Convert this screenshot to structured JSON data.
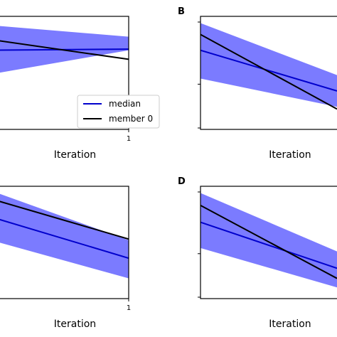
{
  "chart_data": [
    {
      "panel": "",
      "type": "line",
      "xlabel": "Iteration",
      "x_ticks": [
        "1"
      ],
      "xlim": [
        0,
        1
      ],
      "ylim": [
        0,
        1
      ],
      "band": {
        "x": [
          0,
          1
        ],
        "upper": [
          0.93,
          0.82
        ],
        "lower": [
          0.47,
          0.7
        ]
      },
      "series": [
        {
          "name": "median",
          "color": "#0000cc",
          "x": [
            0,
            1
          ],
          "y": [
            0.7,
            0.71
          ]
        },
        {
          "name": "member 0",
          "color": "#000000",
          "x": [
            0,
            1
          ],
          "y": [
            0.81,
            0.62
          ]
        }
      ],
      "legend": {
        "entries": [
          {
            "label": "median",
            "color": "#0000cc"
          },
          {
            "label": "member 0",
            "color": "#000000"
          }
        ],
        "placement": "lower-right"
      }
    },
    {
      "panel": "B",
      "type": "line",
      "xlabel": "Iteration",
      "x_ticks": [],
      "xlim": [
        0,
        1
      ],
      "ylim": [
        0,
        1
      ],
      "band": {
        "x": [
          0,
          1
        ],
        "upper": [
          0.94,
          0.48
        ],
        "lower": [
          0.45,
          0.2
        ]
      },
      "series": [
        {
          "name": "median",
          "color": "#0000cc",
          "x": [
            0,
            1
          ],
          "y": [
            0.7,
            0.34
          ]
        },
        {
          "name": "member 0",
          "color": "#000000",
          "x": [
            0,
            1
          ],
          "y": [
            0.84,
            0.18
          ]
        }
      ]
    },
    {
      "panel": "",
      "type": "line",
      "xlabel": "Iteration",
      "x_ticks": [
        "1"
      ],
      "xlim": [
        0,
        1
      ],
      "ylim": [
        0,
        1
      ],
      "band": {
        "x": [
          0,
          1
        ],
        "upper": [
          1.0,
          0.52
        ],
        "lower": [
          0.55,
          0.18
        ]
      },
      "series": [
        {
          "name": "median",
          "color": "#0000cc",
          "x": [
            0,
            1
          ],
          "y": [
            0.76,
            0.36
          ]
        },
        {
          "name": "member 0",
          "color": "#000000",
          "x": [
            0,
            1
          ],
          "y": [
            0.92,
            0.53
          ]
        }
      ]
    },
    {
      "panel": "D",
      "type": "line",
      "xlabel": "Iteration",
      "x_ticks": [],
      "xlim": [
        0,
        1
      ],
      "ylim": [
        0,
        1
      ],
      "band": {
        "x": [
          0,
          1
        ],
        "upper": [
          0.94,
          0.42
        ],
        "lower": [
          0.45,
          0.1
        ]
      },
      "series": [
        {
          "name": "median",
          "color": "#0000cc",
          "x": [
            0,
            1
          ],
          "y": [
            0.68,
            0.27
          ]
        },
        {
          "name": "member 0",
          "color": "#000000",
          "x": [
            0,
            1
          ],
          "y": [
            0.83,
            0.18
          ]
        }
      ]
    }
  ],
  "style": {
    "band_color": "#7b7bff",
    "axis_color": "#000000"
  }
}
